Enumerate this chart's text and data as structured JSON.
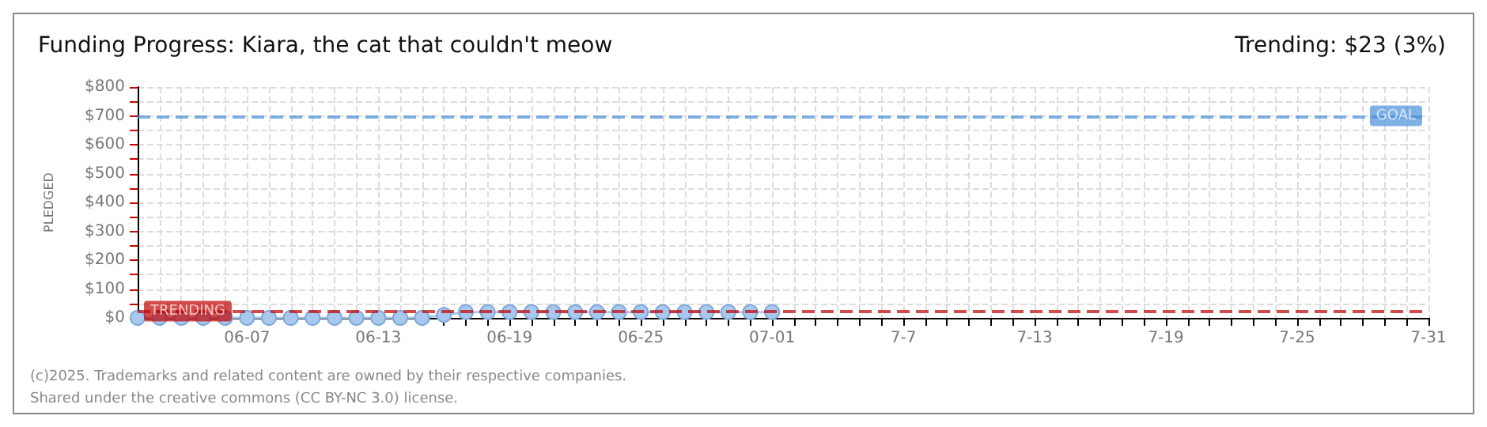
{
  "chart_data": {
    "type": "line",
    "title": "Funding Progress: Kiara, the cat that couldn't meow",
    "subtitle": "Trending: $23 (3%)",
    "ylabel": "PLEDGED",
    "x": [
      "--06-02",
      "--06-03",
      "--06-04",
      "--06-05",
      "--06-06",
      "--06-07",
      "--06-08",
      "--06-09",
      "--06-10",
      "--06-11",
      "--06-12",
      "--06-13",
      "--06-14",
      "--06-15",
      "--06-16",
      "--06-17",
      "--06-18",
      "--06-19",
      "--06-20",
      "--06-21",
      "--06-22",
      "--06-23",
      "--06-24",
      "--06-25",
      "--06-26",
      "--06-27",
      "--06-28",
      "--06-29",
      "--06-30",
      "--07-01"
    ],
    "series": [
      {
        "color": "#a8c8ee",
        "values": [
          0,
          0,
          0,
          0,
          0,
          0,
          0,
          0,
          0,
          0,
          0,
          0,
          0,
          0,
          10,
          20,
          20,
          20,
          20,
          20,
          20,
          20,
          20,
          20,
          20,
          20,
          20,
          20,
          20,
          20
        ]
      }
    ],
    "marker": "circle",
    "grid": true,
    "xlim": [
      "--06-02",
      "--07-31"
    ],
    "xticks": [
      {
        "value": "--06-02",
        "label": null
      },
      {
        "value": "--06-03",
        "label": null
      },
      {
        "value": "--06-04",
        "label": null
      },
      {
        "value": "--06-05",
        "label": null
      },
      {
        "value": "--06-06",
        "label": null
      },
      {
        "value": "--06-07",
        "label": "06-07"
      },
      {
        "value": "--06-08",
        "label": null
      },
      {
        "value": "--06-09",
        "label": null
      },
      {
        "value": "--06-10",
        "label": null
      },
      {
        "value": "--06-11",
        "label": null
      },
      {
        "value": "--06-12",
        "label": null
      },
      {
        "value": "--06-13",
        "label": "06-13"
      },
      {
        "value": "--06-14",
        "label": null
      },
      {
        "value": "--06-15",
        "label": null
      },
      {
        "value": "--06-16",
        "label": null
      },
      {
        "value": "--06-17",
        "label": null
      },
      {
        "value": "--06-18",
        "label": null
      },
      {
        "value": "--06-19",
        "label": "06-19"
      },
      {
        "value": "--06-20",
        "label": null
      },
      {
        "value": "--06-21",
        "label": null
      },
      {
        "value": "--06-22",
        "label": null
      },
      {
        "value": "--06-23",
        "label": null
      },
      {
        "value": "--06-24",
        "label": null
      },
      {
        "value": "--06-25",
        "label": "06-25"
      },
      {
        "value": "--06-26",
        "label": null
      },
      {
        "value": "--06-27",
        "label": null
      },
      {
        "value": "--06-28",
        "label": null
      },
      {
        "value": "--06-29",
        "label": null
      },
      {
        "value": "--06-30",
        "label": null
      },
      {
        "value": "--07-01",
        "label": "07-01"
      },
      {
        "value": "--07-02",
        "label": null
      },
      {
        "value": "--07-03",
        "label": null
      },
      {
        "value": "--07-04",
        "label": null
      },
      {
        "value": "--07-05",
        "label": null
      },
      {
        "value": "--07-06",
        "label": null
      },
      {
        "value": "--07-07",
        "label": "7-7"
      },
      {
        "value": "--07-08",
        "label": null
      },
      {
        "value": "--07-09",
        "label": null
      },
      {
        "value": "--07-10",
        "label": null
      },
      {
        "value": "--07-11",
        "label": null
      },
      {
        "value": "--07-12",
        "label": null
      },
      {
        "value": "--07-13",
        "label": "7-13"
      },
      {
        "value": "--07-14",
        "label": null
      },
      {
        "value": "--07-15",
        "label": null
      },
      {
        "value": "--07-16",
        "label": null
      },
      {
        "value": "--07-17",
        "label": null
      },
      {
        "value": "--07-18",
        "label": null
      },
      {
        "value": "--07-19",
        "label": "7-19"
      },
      {
        "value": "--07-20",
        "label": null
      },
      {
        "value": "--07-21",
        "label": null
      },
      {
        "value": "--07-22",
        "label": null
      },
      {
        "value": "--07-23",
        "label": null
      },
      {
        "value": "--07-24",
        "label": null
      },
      {
        "value": "--07-25",
        "label": "7-25"
      },
      {
        "value": "--07-26",
        "label": null
      },
      {
        "value": "--07-27",
        "label": null
      },
      {
        "value": "--07-28",
        "label": null
      },
      {
        "value": "--07-29",
        "label": null
      },
      {
        "value": "--07-30",
        "label": null
      },
      {
        "value": "--07-31",
        "label": "7-31"
      }
    ],
    "ylim": [
      0,
      800
    ],
    "yticks": [
      {
        "value": 0,
        "label": "$0"
      },
      {
        "value": 50,
        "label": null
      },
      {
        "value": 100,
        "label": "$100"
      },
      {
        "value": 150,
        "label": null
      },
      {
        "value": 200,
        "label": "$200"
      },
      {
        "value": 250,
        "label": null
      },
      {
        "value": 300,
        "label": "$300"
      },
      {
        "value": 350,
        "label": null
      },
      {
        "value": 400,
        "label": "$400"
      },
      {
        "value": 450,
        "label": null
      },
      {
        "value": 500,
        "label": "$500"
      },
      {
        "value": 550,
        "label": null
      },
      {
        "value": 600,
        "label": "$600"
      },
      {
        "value": 650,
        "label": null
      },
      {
        "value": 700,
        "label": "$700"
      },
      {
        "value": 750,
        "label": null
      },
      {
        "value": 800,
        "label": "$800"
      }
    ],
    "ref_lines": [
      {
        "axis": "y",
        "value": 700,
        "label": "GOAL",
        "color": "#4a90d9",
        "line_style": "dashed"
      },
      {
        "axis": "y",
        "value": 23,
        "label": "TRENDING",
        "color": "#c00000",
        "line_style": "dashed"
      }
    ],
    "annotations": [
      "(c)2025. Trademarks and related content are owned by their respective companies.",
      "Shared under the creative commons (CC BY-NC 3.0) license."
    ]
  }
}
